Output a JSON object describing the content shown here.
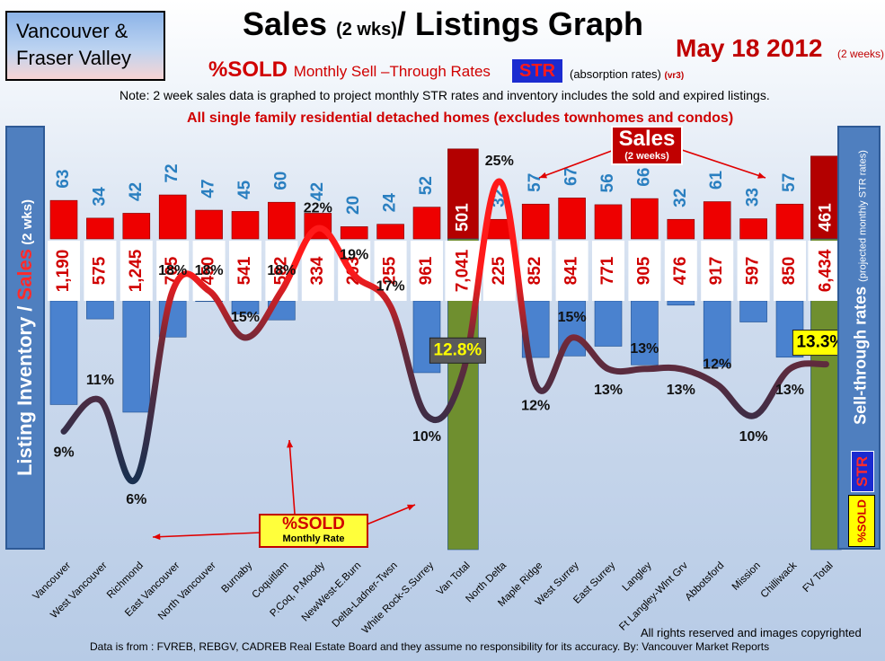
{
  "region": {
    "line1": "Vancouver &",
    "line2": "Fraser Valley"
  },
  "title_main": "Sales",
  "title_small": "(2 wks)",
  "title_tail": "/ Listings Graph",
  "date": "May 18 2012",
  "date_note": "(2 weeks)",
  "subtitle_bold": "%SOLD",
  "subtitle_rest": "Monthly Sell –Through Rates",
  "str_label": "STR",
  "absorption": "(absorption rates)",
  "version": "(vr3)",
  "note": "Note: 2 week sales data is graphed to project monthly STR rates and inventory includes the sold and expired listings.",
  "detached": "All single family residential detached homes (excludes townhomes and condos)",
  "left_axis": {
    "a": "Listing Inventory / ",
    "b": "Sales",
    "c": " (2 wks)"
  },
  "right_axis": {
    "a": "Sell-through rates",
    "b": "(projected monthly STR rates)"
  },
  "str_vertical": "STR",
  "sold_vertical": "%SOLD",
  "sold_callout": {
    "a": "%SOLD",
    "b": "Monthly Rate"
  },
  "sales_callout": {
    "a": "Sales",
    "b": "(2 weeks)"
  },
  "footer_rights": "All rights reserved and  images copyrighted",
  "footer_source": "Data is from : FVREB, REBGV, CADREB Real Estate Board and they assume no responsibility for its accuracy. By: Vancouver Market Reports",
  "colors": {
    "sales": "#ee0000",
    "inventory": "#4a82cf",
    "total_sales": "#b30000",
    "total_inventory": "#6f8f2f",
    "line_low": "#1a3050",
    "line_high": "#ff1a1a"
  },
  "chart_data": {
    "type": "bar",
    "categories": [
      "Vancouver",
      "West Vancouver",
      "Richmond",
      "East Vancouver",
      "North Vancouver",
      "Burnaby",
      "Coquitlam",
      "P.Coq, P.Moody",
      "NewWest-E.Burn",
      "Delta-Ladner-Twsn",
      "White Rock-S.Surrey",
      "Van Total",
      "North Delta",
      "Maple Ridge",
      "West Surrey",
      "East Surrey",
      "Langley",
      "Ft Langley-Wlnt Grv",
      "Abbotsford",
      "Mission",
      "Chilliwack",
      "FV Total"
    ],
    "series": [
      {
        "name": "Sales",
        "values": [
          63,
          34,
          42,
          72,
          47,
          45,
          60,
          42,
          20,
          24,
          52,
          501,
          32,
          57,
          67,
          56,
          66,
          32,
          61,
          33,
          57,
          461
        ]
      },
      {
        "name": "Listing Inventory",
        "values": [
          1190,
          575,
          1245,
          705,
          450,
          541,
          582,
          334,
          203,
          255,
          961,
          7041,
          225,
          852,
          841,
          771,
          905,
          476,
          917,
          597,
          850,
          6434
        ]
      },
      {
        "name": "%SOLD Monthly Rate",
        "values": [
          9,
          11,
          6,
          18,
          18,
          15,
          18,
          22,
          19,
          17,
          10,
          12.8,
          25,
          12,
          15,
          13,
          13,
          13,
          12,
          10,
          13,
          13.3
        ]
      }
    ],
    "value_labels": {
      "sales": [
        "63",
        "34",
        "42",
        "72",
        "47",
        "45",
        "60",
        "42",
        "20",
        "24",
        "52",
        "501",
        "32",
        "57",
        "67",
        "56",
        "66",
        "32",
        "61",
        "33",
        "57",
        "461"
      ],
      "inventory": [
        "1,190",
        "575",
        "1,245",
        "705",
        "450",
        "541",
        "582",
        "334",
        "203",
        "255",
        "961",
        "7,041",
        "225",
        "852",
        "841",
        "771",
        "905",
        "476",
        "917",
        "597",
        "850",
        "6,434"
      ],
      "rate": [
        "9%",
        "11%",
        "6%",
        "18%",
        "18%",
        "15%",
        "18%",
        "22%",
        "19%",
        "17%",
        "10%",
        "12.8%",
        "25%",
        "12%",
        "15%",
        "13%",
        "13%",
        "13%",
        "12%",
        "10%",
        "13%",
        "13.3%"
      ]
    },
    "total_indices": [
      11,
      21
    ],
    "legend": "none"
  }
}
